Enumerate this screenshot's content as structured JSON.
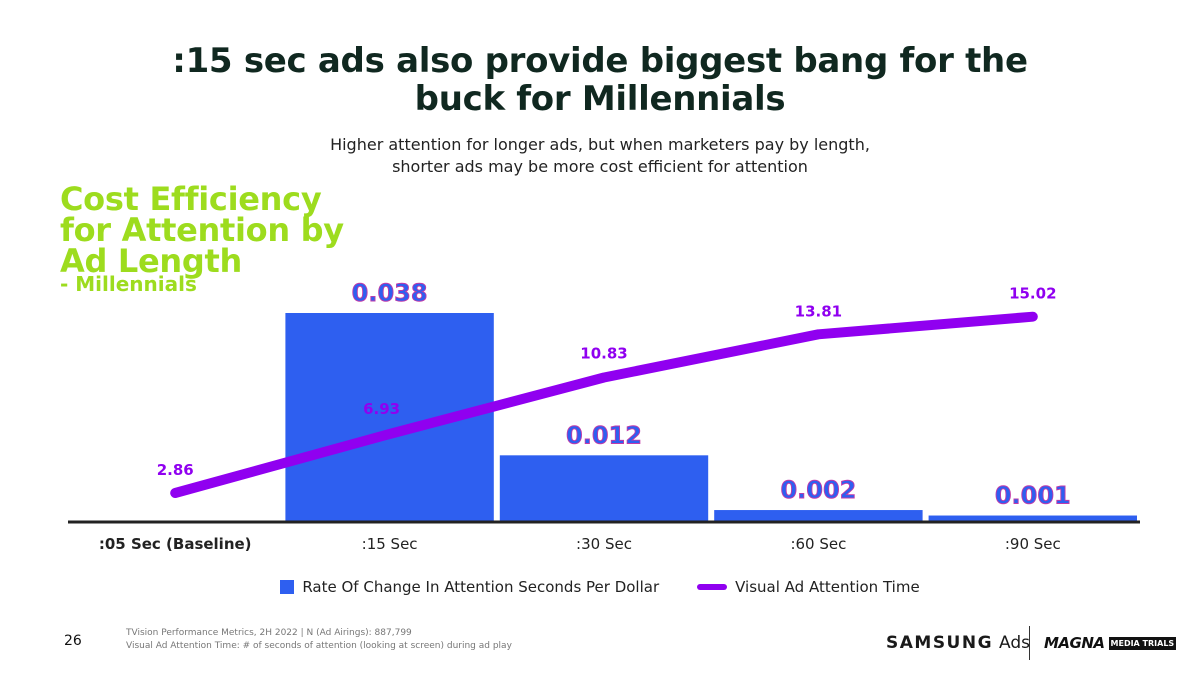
{
  "title": ":15 sec ads also provide biggest bang for the buck for Millennials",
  "subtitle": "Higher attention for longer ads, but when marketers pay by length, shorter ads may be more cost efficient for attention",
  "chart_heading": {
    "line1": "Cost Efficiency",
    "line2": "for Attention by",
    "line3": "Ad Length",
    "sub": "- Millennials"
  },
  "chart_data": {
    "type": "bar",
    "categories": [
      ":05 Sec (Baseline)",
      ":15 Sec",
      ":30 Sec",
      ":60 Sec",
      ":90 Sec"
    ],
    "series": [
      {
        "name": "Rate Of Change In Attention Seconds Per Dollar",
        "type": "bar",
        "values": [
          null,
          0.038,
          0.012,
          0.002,
          0.001
        ],
        "labels": [
          "",
          "0.038",
          "0.012",
          "0.002",
          "0.001"
        ],
        "color": "#2e5ff0",
        "label_color": "#3a2fbf"
      },
      {
        "name": "Visual Ad Attention Time",
        "type": "line",
        "values": [
          2.86,
          6.93,
          10.83,
          13.81,
          15.02
        ],
        "labels": [
          "2.86",
          "6.93",
          "10.83",
          "13.81",
          "15.02"
        ],
        "color": "#9000f0"
      }
    ],
    "legend_position": "bottom",
    "grid": false
  },
  "legend": {
    "bar_label": "Rate Of Change In Attention Seconds Per Dollar",
    "line_label": "Visual Ad Attention Time"
  },
  "footer": {
    "page_number": "26",
    "footnote_line1": "TVision Performance Metrics, 2H 2022 | N (Ad Airings): 887,799",
    "footnote_line2": "Visual Ad Attention Time:  # of seconds of attention (looking at screen) during ad play",
    "logo_samsung": "SAMSUNG",
    "logo_ads": "Ads",
    "logo_magna": "MAGNA",
    "logo_media_trials": "MEDIA TRIALS"
  },
  "colors": {
    "title": "#102820",
    "heading_accent": "#9ddc1e",
    "bar": "#2e5ff0",
    "line": "#9000f0"
  }
}
